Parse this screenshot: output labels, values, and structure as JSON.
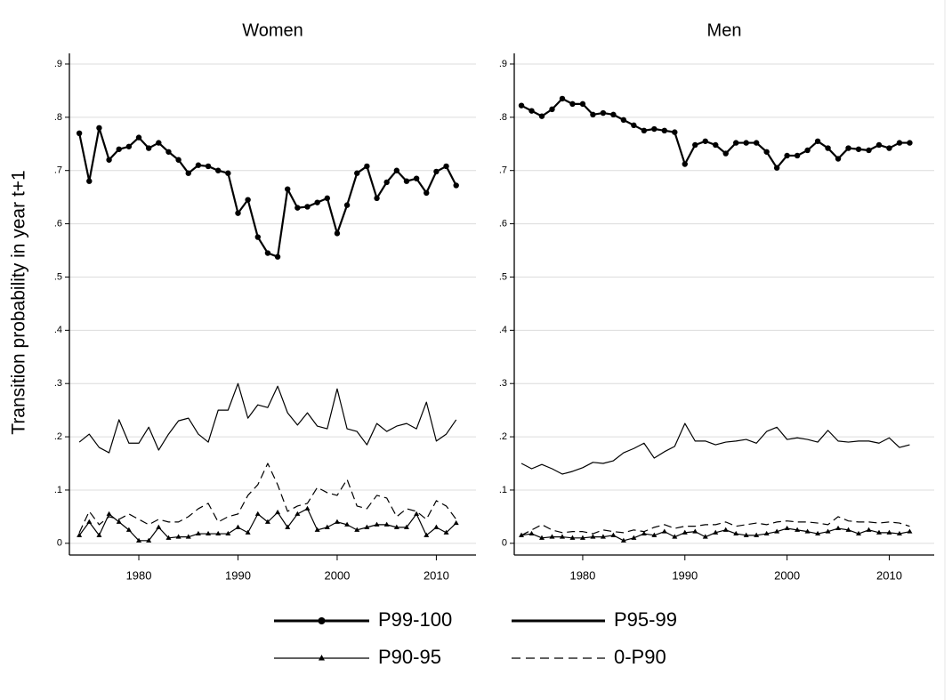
{
  "chart_data": [
    {
      "type": "line",
      "title": "Women",
      "ylabel": "Transition probability in year t+1",
      "x": [
        1974,
        1975,
        1976,
        1977,
        1978,
        1979,
        1980,
        1981,
        1982,
        1983,
        1984,
        1985,
        1986,
        1987,
        1988,
        1989,
        1990,
        1991,
        1992,
        1993,
        1994,
        1995,
        1996,
        1997,
        1998,
        1999,
        2000,
        2001,
        2002,
        2003,
        2004,
        2005,
        2006,
        2007,
        2008,
        2009,
        2010,
        2011,
        2012
      ],
      "series": [
        {
          "name": "P99-100",
          "color": "#000000",
          "marker": "circle",
          "dash": false,
          "values": [
            0.77,
            0.68,
            0.78,
            0.72,
            0.74,
            0.745,
            0.762,
            0.742,
            0.752,
            0.735,
            0.72,
            0.695,
            0.71,
            0.708,
            0.7,
            0.695,
            0.62,
            0.645,
            0.575,
            0.545,
            0.538,
            0.665,
            0.63,
            0.632,
            0.64,
            0.648,
            0.582,
            0.635,
            0.695,
            0.708,
            0.648,
            0.678,
            0.7,
            0.68,
            0.685,
            0.658,
            0.698,
            0.708,
            0.672
          ]
        },
        {
          "name": "P95-99",
          "color": "#000000",
          "marker": "none",
          "dash": false,
          "values": [
            0.19,
            0.205,
            0.18,
            0.17,
            0.232,
            0.188,
            0.188,
            0.218,
            0.175,
            0.205,
            0.23,
            0.235,
            0.205,
            0.19,
            0.25,
            0.25,
            0.3,
            0.235,
            0.26,
            0.255,
            0.295,
            0.245,
            0.222,
            0.245,
            0.22,
            0.215,
            0.29,
            0.215,
            0.21,
            0.185,
            0.225,
            0.21,
            0.22,
            0.225,
            0.215,
            0.265,
            0.192,
            0.205,
            0.232
          ]
        },
        {
          "name": "P90-95",
          "color": "#000000",
          "marker": "triangle",
          "dash": false,
          "values": [
            0.015,
            0.04,
            0.015,
            0.055,
            0.04,
            0.025,
            0.005,
            0.005,
            0.03,
            0.01,
            0.012,
            0.012,
            0.018,
            0.018,
            0.018,
            0.018,
            0.03,
            0.02,
            0.055,
            0.04,
            0.058,
            0.03,
            0.055,
            0.065,
            0.025,
            0.03,
            0.04,
            0.035,
            0.025,
            0.03,
            0.035,
            0.035,
            0.03,
            0.03,
            0.055,
            0.015,
            0.03,
            0.02,
            0.038
          ]
        },
        {
          "name": "0-P90",
          "color": "#000000",
          "marker": "none",
          "dash": true,
          "values": [
            0.02,
            0.06,
            0.035,
            0.05,
            0.045,
            0.055,
            0.045,
            0.035,
            0.045,
            0.04,
            0.04,
            0.05,
            0.065,
            0.075,
            0.04,
            0.05,
            0.055,
            0.09,
            0.11,
            0.15,
            0.11,
            0.06,
            0.07,
            0.075,
            0.105,
            0.095,
            0.09,
            0.12,
            0.07,
            0.065,
            0.09,
            0.085,
            0.05,
            0.065,
            0.06,
            0.045,
            0.08,
            0.07,
            0.045
          ]
        }
      ],
      "xlim": [
        1973,
        2014
      ],
      "xticks": [
        1980,
        1990,
        2000,
        2010
      ],
      "ylim": [
        -0.017,
        0.92
      ],
      "yticks": [
        0,
        {
          "value": 0.1,
          "label": ".1"
        },
        {
          "value": 0.2,
          "label": ".2"
        },
        {
          "value": 0.3,
          "label": ".3"
        },
        {
          "value": 0.4,
          "label": ".4"
        },
        {
          "value": 0.5,
          "label": ".5"
        },
        {
          "value": 0.6,
          "label": ".6"
        },
        {
          "value": 0.7,
          "label": ".7"
        },
        {
          "value": 0.8,
          "label": ".8"
        },
        {
          "value": 0.9,
          "label": ".9"
        }
      ],
      "grid": true,
      "legend": "bottom"
    },
    {
      "type": "line",
      "title": "Men",
      "x": [
        1974,
        1975,
        1976,
        1977,
        1978,
        1979,
        1980,
        1981,
        1982,
        1983,
        1984,
        1985,
        1986,
        1987,
        1988,
        1989,
        1990,
        1991,
        1992,
        1993,
        1994,
        1995,
        1996,
        1997,
        1998,
        1999,
        2000,
        2001,
        2002,
        2003,
        2004,
        2005,
        2006,
        2007,
        2008,
        2009,
        2010,
        2011,
        2012
      ],
      "series": [
        {
          "name": "P99-100",
          "color": "#000000",
          "marker": "circle",
          "dash": false,
          "values": [
            0.822,
            0.812,
            0.802,
            0.815,
            0.835,
            0.825,
            0.825,
            0.805,
            0.808,
            0.805,
            0.795,
            0.785,
            0.775,
            0.778,
            0.775,
            0.772,
            0.712,
            0.748,
            0.755,
            0.748,
            0.732,
            0.752,
            0.752,
            0.752,
            0.735,
            0.705,
            0.728,
            0.728,
            0.738,
            0.755,
            0.742,
            0.722,
            0.742,
            0.74,
            0.738,
            0.748,
            0.742,
            0.752,
            0.752
          ]
        },
        {
          "name": "P95-99",
          "color": "#000000",
          "marker": "none",
          "dash": false,
          "values": [
            0.15,
            0.14,
            0.148,
            0.14,
            0.13,
            0.135,
            0.142,
            0.152,
            0.15,
            0.155,
            0.17,
            0.178,
            0.188,
            0.16,
            0.172,
            0.182,
            0.225,
            0.192,
            0.192,
            0.185,
            0.19,
            0.192,
            0.195,
            0.188,
            0.21,
            0.218,
            0.195,
            0.198,
            0.195,
            0.19,
            0.212,
            0.192,
            0.19,
            0.192,
            0.192,
            0.188,
            0.198,
            0.18,
            0.185
          ]
        },
        {
          "name": "P90-95",
          "color": "#000000",
          "marker": "triangle",
          "dash": false,
          "values": [
            0.015,
            0.018,
            0.01,
            0.012,
            0.012,
            0.01,
            0.01,
            0.012,
            0.012,
            0.015,
            0.005,
            0.01,
            0.018,
            0.015,
            0.022,
            0.012,
            0.02,
            0.022,
            0.012,
            0.02,
            0.025,
            0.018,
            0.015,
            0.015,
            0.018,
            0.022,
            0.028,
            0.025,
            0.022,
            0.018,
            0.022,
            0.028,
            0.025,
            0.018,
            0.025,
            0.02,
            0.02,
            0.018,
            0.022
          ]
        },
        {
          "name": "0-P90",
          "color": "#000000",
          "marker": "none",
          "dash": true,
          "values": [
            0.015,
            0.025,
            0.035,
            0.025,
            0.02,
            0.022,
            0.022,
            0.018,
            0.025,
            0.022,
            0.02,
            0.025,
            0.022,
            0.03,
            0.035,
            0.028,
            0.032,
            0.032,
            0.035,
            0.035,
            0.04,
            0.032,
            0.035,
            0.038,
            0.035,
            0.04,
            0.042,
            0.04,
            0.04,
            0.038,
            0.035,
            0.05,
            0.042,
            0.04,
            0.04,
            0.038,
            0.04,
            0.038,
            0.032
          ]
        }
      ],
      "xlim": [
        1973.3,
        2014.4
      ],
      "xticks": [
        1980,
        1990,
        2000,
        2010
      ],
      "ylim": [
        -0.017,
        0.92
      ],
      "yticks": [
        0,
        {
          "value": 0.1,
          "label": ".1"
        },
        {
          "value": 0.2,
          "label": ".2"
        },
        {
          "value": 0.3,
          "label": ".3"
        },
        {
          "value": 0.4,
          "label": ".4"
        },
        {
          "value": 0.5,
          "label": ".5"
        },
        {
          "value": 0.6,
          "label": ".6"
        },
        {
          "value": 0.7,
          "label": ".7"
        },
        {
          "value": 0.8,
          "label": ".8"
        },
        {
          "value": 0.9,
          "label": ".9"
        }
      ],
      "grid": true
    }
  ]
}
